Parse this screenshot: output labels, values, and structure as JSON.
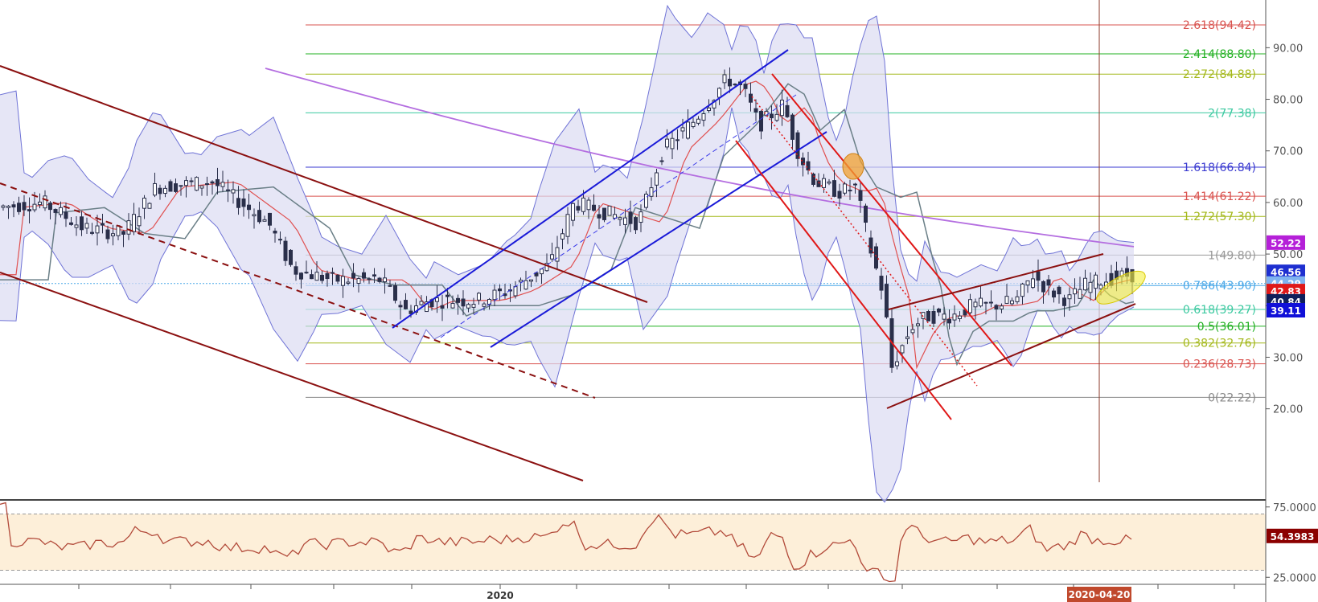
{
  "chart_data": [
    {
      "type": "candlestick",
      "y_ticks": [
        "90.00",
        "80.00",
        "70.00",
        "60.00",
        "50.00",
        "40.00",
        "30.00",
        "20.00"
      ],
      "ylim": [
        12,
        98
      ],
      "x_labels": [
        "2020",
        "2020-04-20"
      ],
      "fib_levels": [
        {
          "label": "2.618(94.42)",
          "value": 94.42,
          "color": "#d9534f"
        },
        {
          "label": "2.414(88.80)",
          "value": 88.8,
          "color": "#22b022"
        },
        {
          "label": "2.272(84.88)",
          "value": 84.88,
          "color": "#a4b81a"
        },
        {
          "label": "2(77.38)",
          "value": 77.38,
          "color": "#3cc9a0"
        },
        {
          "label": "1.618(66.84)",
          "value": 66.84,
          "color": "#3a3ad0"
        },
        {
          "label": "1.414(61.22)",
          "value": 61.22,
          "color": "#d9534f"
        },
        {
          "label": "1.272(57.30)",
          "value": 57.3,
          "color": "#a4b81a"
        },
        {
          "label": "1(49.80)",
          "value": 49.8,
          "color": "#999999"
        },
        {
          "label": "0.786(43.90)",
          "value": 43.9,
          "color": "#4aa8e8"
        },
        {
          "label": "0.618(39.27)",
          "value": 39.27,
          "color": "#3cc9a0"
        },
        {
          "label": "0.5(36.01)",
          "value": 36.01,
          "color": "#22b022"
        },
        {
          "label": "0.382(32.76)",
          "value": 32.76,
          "color": "#a4b81a"
        },
        {
          "label": "0.236(28.73)",
          "value": 28.73,
          "color": "#d9534f"
        },
        {
          "label": "0(22.22)",
          "value": 22.22,
          "color": "#888888"
        }
      ],
      "price_badges": [
        {
          "label": "52.22",
          "value": 52.22,
          "color": "#b520d8"
        },
        {
          "label": "46.56",
          "value": 46.56,
          "color": "#1e2fd0"
        },
        {
          "label": "44.29",
          "value": 44.29,
          "color": "#7fb3f0"
        },
        {
          "label": "42.83",
          "value": 42.83,
          "color": "#e01818"
        },
        {
          "label": "40.84",
          "value": 40.84,
          "color": "#0f1f5a"
        },
        {
          "label": "39.11",
          "value": 39.11,
          "color": "#1010d8"
        }
      ]
    },
    {
      "type": "line",
      "indicator": "RSI",
      "y_ticks": [
        "75.0000",
        "25.0000"
      ],
      "ylim": [
        20,
        80
      ],
      "current_label": "54.3983",
      "current_value": 54.3983,
      "current_color": "#8b0000"
    }
  ]
}
